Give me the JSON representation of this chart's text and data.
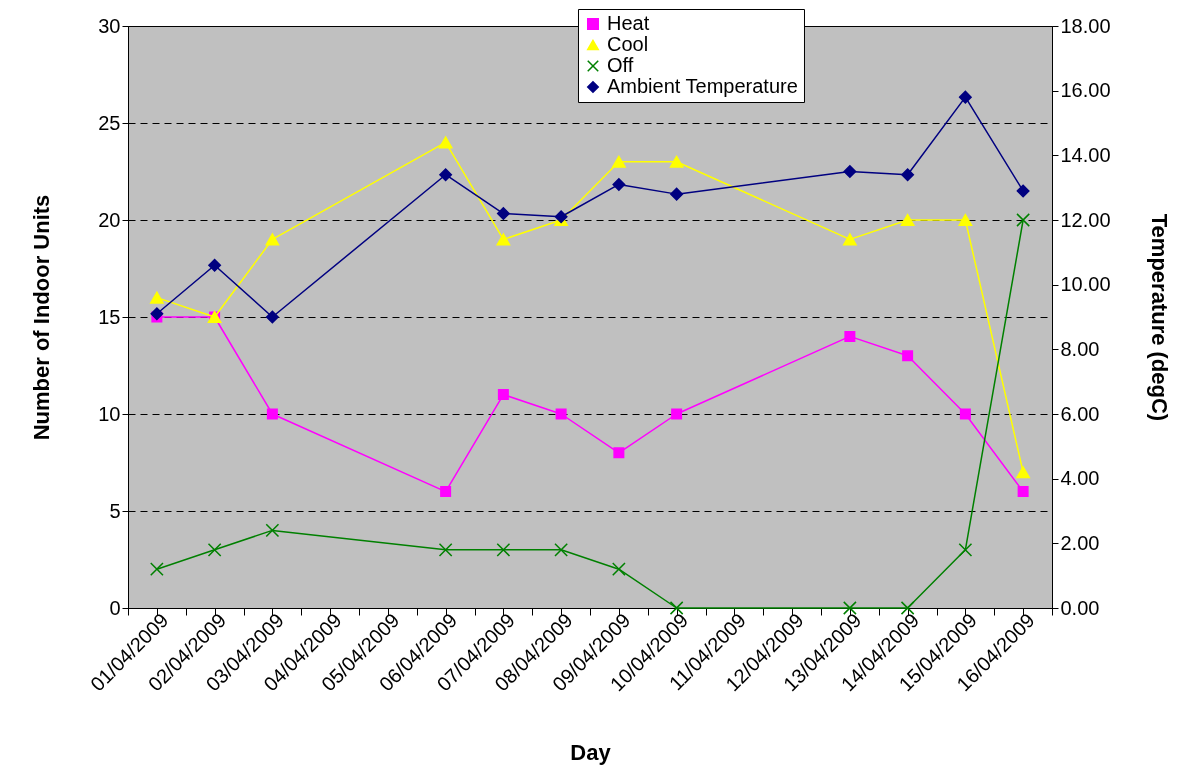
{
  "chart_data": {
    "type": "line",
    "xlabel": "Day",
    "ylabel": "Number of Indoor Units",
    "y2label": "Temperature (degC)",
    "x": [
      "2009-04-01",
      "2009-04-02",
      "2009-04-03",
      "2009-04-06",
      "2009-04-07",
      "2009-04-08",
      "2009-04-09",
      "2009-04-10",
      "2009-04-13",
      "2009-04-14",
      "2009-04-15",
      "2009-04-16"
    ],
    "xlim": [
      "2009-03-31T12:00",
      "2009-04-16T12:00"
    ],
    "xticks": [
      {
        "value": "2009-03-31T12:00",
        "label": null
      },
      {
        "value": "2009-04-01",
        "label": "01/04/2009"
      },
      {
        "value": "2009-04-01T12:00",
        "label": null
      },
      {
        "value": "2009-04-02",
        "label": "02/04/2009"
      },
      {
        "value": "2009-04-02T12:00",
        "label": null
      },
      {
        "value": "2009-04-03",
        "label": "03/04/2009"
      },
      {
        "value": "2009-04-03T12:00",
        "label": null
      },
      {
        "value": "2009-04-04",
        "label": "04/04/2009"
      },
      {
        "value": "2009-04-04T12:00",
        "label": null
      },
      {
        "value": "2009-04-05",
        "label": "05/04/2009"
      },
      {
        "value": "2009-04-05T12:00",
        "label": null
      },
      {
        "value": "2009-04-06",
        "label": "06/04/2009"
      },
      {
        "value": "2009-04-06T12:00",
        "label": null
      },
      {
        "value": "2009-04-07",
        "label": "07/04/2009"
      },
      {
        "value": "2009-04-07T12:00",
        "label": null
      },
      {
        "value": "2009-04-08",
        "label": "08/04/2009"
      },
      {
        "value": "2009-04-08T12:00",
        "label": null
      },
      {
        "value": "2009-04-09",
        "label": "09/04/2009"
      },
      {
        "value": "2009-04-09T12:00",
        "label": null
      },
      {
        "value": "2009-04-10",
        "label": "10/04/2009"
      },
      {
        "value": "2009-04-10T12:00",
        "label": null
      },
      {
        "value": "2009-04-11",
        "label": "11/04/2009"
      },
      {
        "value": "2009-04-11T12:00",
        "label": null
      },
      {
        "value": "2009-04-12",
        "label": "12/04/2009"
      },
      {
        "value": "2009-04-12T12:00",
        "label": null
      },
      {
        "value": "2009-04-13",
        "label": "13/04/2009"
      },
      {
        "value": "2009-04-13T12:00",
        "label": null
      },
      {
        "value": "2009-04-14",
        "label": "14/04/2009"
      },
      {
        "value": "2009-04-14T12:00",
        "label": null
      },
      {
        "value": "2009-04-15",
        "label": "15/04/2009"
      },
      {
        "value": "2009-04-15T12:00",
        "label": null
      },
      {
        "value": "2009-04-16",
        "label": "16/04/2009"
      },
      {
        "value": "2009-04-16T12:00",
        "label": null
      }
    ],
    "ylim": [
      0,
      30
    ],
    "yticks": [
      0,
      5,
      10,
      15,
      20,
      25,
      30
    ],
    "y2lim": [
      0,
      18
    ],
    "y2ticks": [
      {
        "value": 0,
        "label": "0.00"
      },
      {
        "value": 2,
        "label": "2.00"
      },
      {
        "value": 4,
        "label": "4.00"
      },
      {
        "value": 6,
        "label": "6.00"
      },
      {
        "value": 8,
        "label": "8.00"
      },
      {
        "value": 10,
        "label": "10.00"
      },
      {
        "value": 12,
        "label": "12.00"
      },
      {
        "value": 14,
        "label": "14.00"
      },
      {
        "value": 16,
        "label": "16.00"
      },
      {
        "value": 18,
        "label": "18.00"
      }
    ],
    "grid": "y",
    "legend": "top",
    "series": [
      {
        "name": "Heat",
        "color": "#ff00ff",
        "marker": "square",
        "values": [
          15,
          15,
          10,
          6,
          11,
          10,
          8,
          10,
          14,
          13,
          10,
          6
        ]
      },
      {
        "name": "Cool",
        "color": "#ffff00",
        "marker": "triangle",
        "values": [
          16,
          15,
          19,
          24,
          19,
          20,
          23,
          23,
          19,
          20,
          20,
          7
        ]
      },
      {
        "name": "Off",
        "color": "#008000",
        "marker": "cross",
        "values": [
          2,
          3,
          4,
          3,
          3,
          3,
          2,
          0,
          0,
          0,
          3,
          20
        ]
      },
      {
        "name": "Ambient Temperature",
        "color": "#000080",
        "marker": "diamond",
        "axis": "y2",
        "values": [
          9.1,
          10.6,
          9.0,
          13.4,
          12.2,
          12.1,
          13.1,
          12.8,
          13.5,
          13.4,
          15.8,
          12.9
        ]
      }
    ]
  }
}
